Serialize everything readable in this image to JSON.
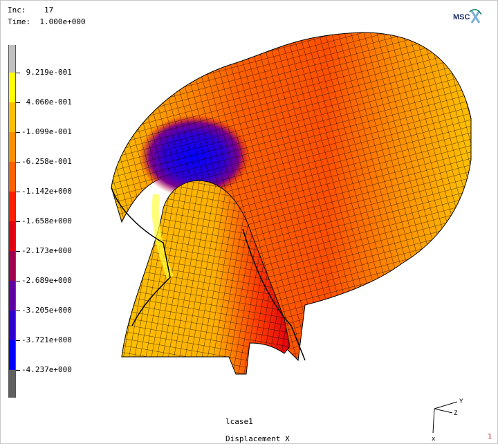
{
  "header": {
    "inc_label": "Inc:",
    "inc_value": "17",
    "time_label": "Time:",
    "time_value": "1.000e+000"
  },
  "logo": {
    "text": "MSC",
    "icon": "msc-logo-icon"
  },
  "legend": {
    "labels": [
      "9.219e-001",
      "4.060e-001",
      "-1.099e-001",
      "-6.258e-001",
      "-1.142e+000",
      "-1.658e+000",
      "-2.173e+000",
      "-2.689e+000",
      "-3.205e+000",
      "-3.721e+000",
      "-4.237e+000"
    ],
    "colors": [
      "#c0c0c0",
      "#ffff00",
      "#ffc000",
      "#ff9000",
      "#ff6000",
      "#ff2000",
      "#e00010",
      "#a00050",
      "#6000a0",
      "#3000d0",
      "#0000ff",
      "#606060"
    ]
  },
  "footer": {
    "case_label": "lcase1",
    "result_label": "Displacement X",
    "page_number": "1"
  },
  "triad": {
    "x": "x",
    "y": "Y",
    "z": "Z"
  }
}
